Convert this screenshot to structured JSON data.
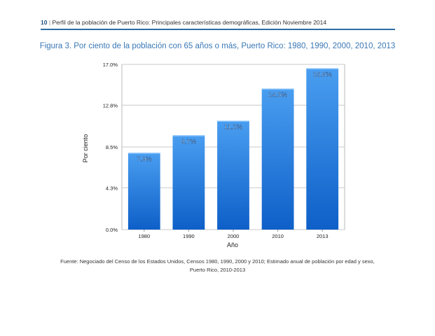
{
  "header": {
    "page_number": "10",
    "separator": "|",
    "running_title": "Perfil de la población de Puerto Rico: Principales características demográficas, Edición Noviembre 2014"
  },
  "figure": {
    "title": "Figura 3. Por ciento de la población con 65 años o más, Puerto Rico: 1980, 1990, 2000, 2010, 2013"
  },
  "chart_data": {
    "type": "bar",
    "categories": [
      "1980",
      "1990",
      "2000",
      "2010",
      "2013"
    ],
    "values": [
      7.9,
      9.7,
      11.2,
      14.5,
      16.6
    ],
    "value_labels": [
      "7.9%",
      "9.7%",
      "11.2%",
      "14.5%",
      "16.6%"
    ],
    "yticks": [
      0.0,
      4.3,
      8.5,
      12.8,
      17.0
    ],
    "ytick_labels": [
      "0.0%",
      "4.3%",
      "8.5%",
      "12.8%",
      "17.0%"
    ],
    "ylim": [
      0,
      17.0
    ],
    "xlabel": "Año",
    "ylabel": "Por ciento",
    "grid": true,
    "bar_color_top": "#4a9ef0",
    "bar_color_bottom": "#0e5fc8"
  },
  "source": {
    "line1": "Fuente: Negociado del Censo de los Estados Unidos, Censos 1980, 1990, 2000 y 2010; Estimado anual de población por edad y sexo,",
    "line2": "Puerto Rico, 2010-2013"
  }
}
